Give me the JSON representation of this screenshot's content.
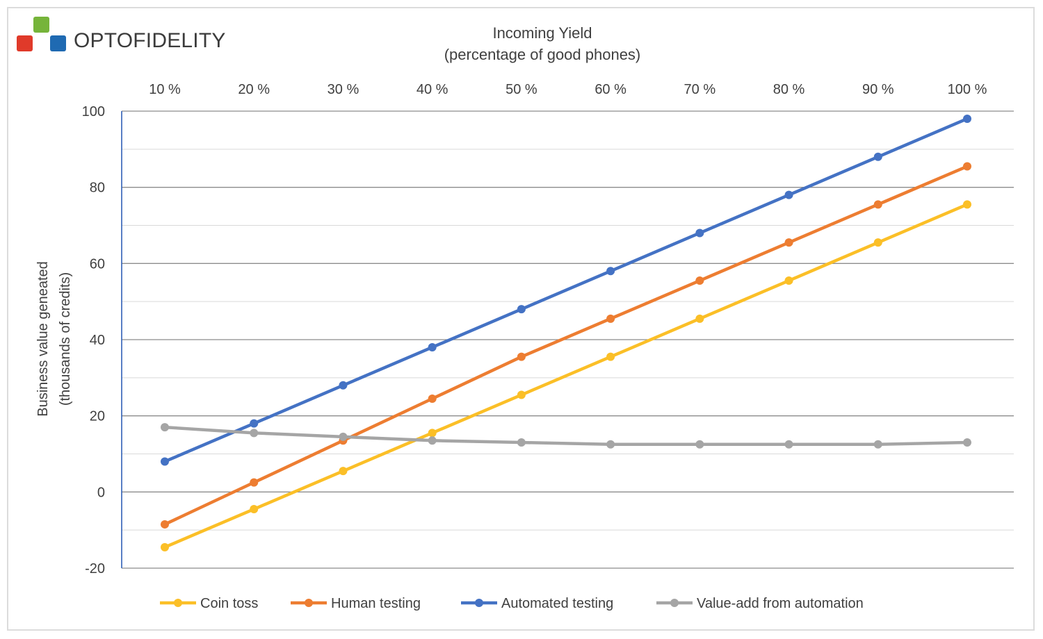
{
  "brand": {
    "name": "OPTOFIDELITY",
    "colors": {
      "red": "#e03a2a",
      "green": "#76b43a",
      "blue": "#1f6ab2"
    }
  },
  "chart_data": {
    "type": "line",
    "title": "",
    "xlabel": [
      "Incoming Yield",
      "(percentage of good phones)"
    ],
    "ylabel": [
      "Business value geneated",
      "(thousands of credits)"
    ],
    "categories": [
      "10 %",
      "20 %",
      "30 %",
      "40 %",
      "50 %",
      "60 %",
      "70 %",
      "80 %",
      "90 %",
      "100 %"
    ],
    "x_axis_position": "top",
    "ylim": [
      -20,
      100
    ],
    "y_ticks": [
      -20,
      0,
      20,
      40,
      60,
      80,
      100
    ],
    "major_grid_step": 20,
    "minor_grid_step": 10,
    "grid": true,
    "legend_position": "bottom",
    "series": [
      {
        "name": "Coin toss",
        "color": "#fbbf27",
        "values": [
          -14.5,
          -4.5,
          5.5,
          15.5,
          25.5,
          35.5,
          45.5,
          55.5,
          65.5,
          75.5
        ]
      },
      {
        "name": "Human testing",
        "color": "#ed7d31",
        "values": [
          -8.5,
          2.5,
          13.5,
          24.5,
          35.5,
          45.5,
          55.5,
          65.5,
          75.5,
          85.5
        ]
      },
      {
        "name": "Automated testing",
        "color": "#4472c4",
        "values": [
          8,
          18,
          28,
          38,
          48,
          58,
          68,
          78,
          88,
          98
        ]
      },
      {
        "name": "Value-add from automation",
        "color": "#a5a5a5",
        "values": [
          17,
          15.5,
          14.5,
          13.5,
          13,
          12.5,
          12.5,
          12.5,
          12.5,
          13
        ]
      }
    ]
  }
}
